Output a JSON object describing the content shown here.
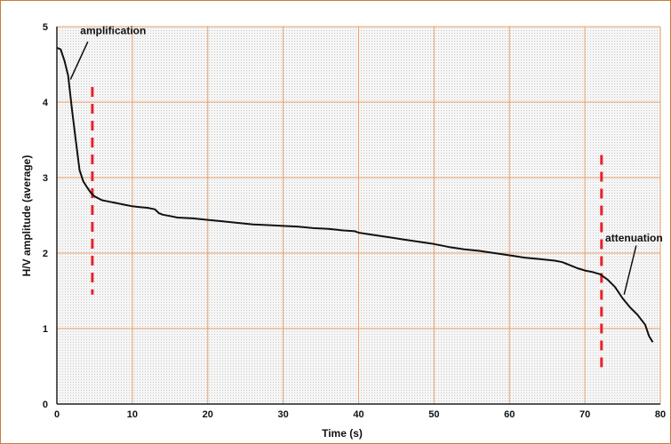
{
  "chart_data": {
    "type": "line",
    "title": "",
    "xlabel": "Time (s)",
    "ylabel": "H/V amplitude (average)",
    "xlim": [
      0,
      80
    ],
    "ylim": [
      0,
      5
    ],
    "xticks": [
      0,
      10,
      20,
      30,
      40,
      50,
      60,
      70,
      80
    ],
    "yticks": [
      0,
      1,
      2,
      3,
      4,
      5
    ],
    "grid": true,
    "legend": "none",
    "colors": {
      "line": "#111111",
      "grid": "#e9a06a",
      "markers": "#e8202a",
      "plot_background": "#f4f4f4",
      "frame": "#c87c3a"
    },
    "series": [
      {
        "x": [
          0,
          0.5,
          1,
          1.5,
          2,
          2.5,
          3,
          3.5,
          4,
          4.5,
          5,
          6,
          7,
          8,
          9,
          10,
          11,
          12,
          13,
          13.5,
          14,
          15,
          16,
          18,
          20,
          22,
          24,
          26,
          28,
          30,
          32,
          34,
          36,
          38,
          39.5,
          40,
          42,
          44,
          46,
          48,
          50,
          52,
          54,
          56,
          58,
          60,
          62,
          64,
          66,
          67,
          68,
          69,
          70,
          71,
          72,
          73,
          74,
          75,
          76,
          77,
          78,
          78.5,
          79
        ],
        "y": [
          4.72,
          4.7,
          4.55,
          4.35,
          3.9,
          3.5,
          3.1,
          2.95,
          2.87,
          2.8,
          2.75,
          2.7,
          2.68,
          2.66,
          2.64,
          2.62,
          2.61,
          2.6,
          2.58,
          2.53,
          2.51,
          2.49,
          2.47,
          2.46,
          2.44,
          2.42,
          2.4,
          2.38,
          2.37,
          2.36,
          2.35,
          2.33,
          2.32,
          2.3,
          2.29,
          2.27,
          2.24,
          2.21,
          2.18,
          2.15,
          2.12,
          2.08,
          2.05,
          2.03,
          2.0,
          1.97,
          1.94,
          1.92,
          1.9,
          1.88,
          1.84,
          1.8,
          1.77,
          1.75,
          1.72,
          1.65,
          1.55,
          1.4,
          1.28,
          1.18,
          1.05,
          0.9,
          0.82
        ]
      }
    ],
    "vertical_markers": [
      {
        "x": 4.7,
        "y_range": [
          1.45,
          4.2
        ]
      },
      {
        "x": 72.2,
        "y_range": [
          0.48,
          3.3
        ]
      }
    ],
    "annotations": [
      {
        "text": "amplification",
        "text_at": [
          3.1,
          4.95
        ],
        "arrow_from": [
          4.1,
          4.8
        ],
        "arrow_to": [
          1.8,
          4.3
        ]
      },
      {
        "text": "attenuation",
        "text_at": [
          72.7,
          2.2
        ],
        "arrow_from": [
          76.8,
          2.1
        ],
        "arrow_to": [
          75.2,
          1.45
        ]
      }
    ]
  }
}
